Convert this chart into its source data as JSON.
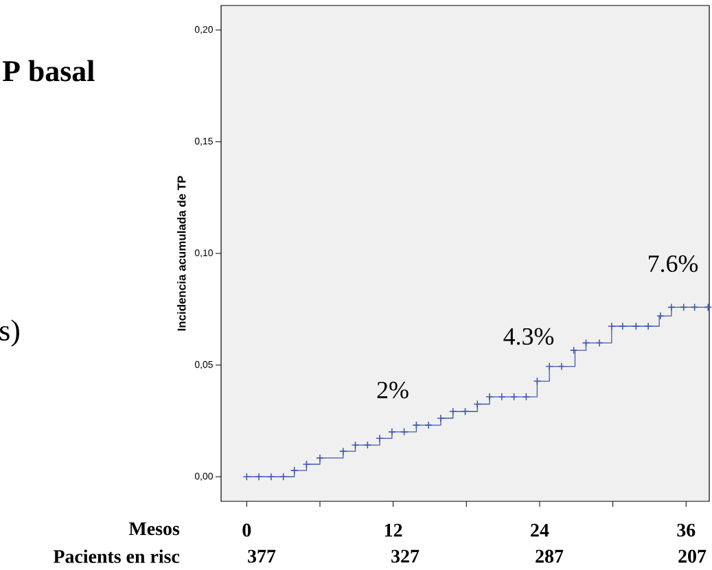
{
  "chart_data": {
    "type": "step",
    "xlabel": "Mesos",
    "ylabel": "Incidencia acumulada de TP",
    "xlim": [
      -2.1,
      37.9
    ],
    "ylim": [
      -0.011,
      0.211
    ],
    "xticks": [
      0,
      {
        "value": 6,
        "label": null
      },
      12,
      {
        "value": 18,
        "label": null
      },
      24,
      {
        "value": 30,
        "label": null
      },
      36
    ],
    "yticks": [
      {
        "value": 0,
        "label": "0,00"
      },
      {
        "value": 0.05,
        "label": "0,05"
      },
      {
        "value": 0.1,
        "label": "0,10"
      },
      {
        "value": 0.15,
        "label": "0,15"
      },
      {
        "value": 0.2,
        "label": "0,20"
      }
    ],
    "grid": false,
    "series": [
      {
        "color": "#4058b0",
        "x": [
          0,
          3.9,
          4.9,
          6.0,
          7.9,
          8.9,
          10.9,
          11.9,
          13.9,
          15.9,
          16.9,
          18.9,
          19.9,
          23.8,
          24.8,
          26.9,
          27.8,
          29.9,
          33.8,
          34.8,
          37.8
        ],
        "values": [
          0,
          0.0028,
          0.0056,
          0.0084,
          0.0114,
          0.0142,
          0.0172,
          0.0201,
          0.0231,
          0.0262,
          0.0292,
          0.0325,
          0.0358,
          0.0428,
          0.0494,
          0.0566,
          0.0599,
          0.0674,
          0.072,
          0.0759,
          0.0759
        ]
      },
      {
        "type": "scatter",
        "marker": "cross",
        "color": "#4058b0",
        "x": [
          0,
          1.0,
          2.0,
          3.0,
          3.9,
          4.9,
          6.0,
          7.9,
          8.9,
          9.9,
          10.9,
          11.9,
          12.9,
          13.9,
          14.9,
          15.9,
          16.9,
          17.9,
          18.9,
          19.9,
          20.9,
          21.9,
          22.9,
          23.8,
          24.8,
          25.8,
          26.8,
          27.8,
          28.9,
          29.9,
          30.8,
          31.9,
          32.9,
          33.9,
          34.8,
          35.8,
          36.7,
          37.8
        ],
        "values": [
          0,
          0,
          0,
          0,
          0.0028,
          0.0056,
          0.0084,
          0.0114,
          0.0142,
          0.0142,
          0.0172,
          0.0201,
          0.0201,
          0.0231,
          0.0231,
          0.0262,
          0.0292,
          0.0292,
          0.0325,
          0.0358,
          0.0358,
          0.0358,
          0.0358,
          0.0428,
          0.0494,
          0.0494,
          0.0566,
          0.0599,
          0.0599,
          0.0674,
          0.0674,
          0.0674,
          0.0674,
          0.072,
          0.0759,
          0.0759,
          0.0759,
          0.0759
        ]
      }
    ],
    "annotations": [
      "2%",
      "4.3%",
      "7.6%",
      "377",
      "327",
      "287",
      "207",
      "P basal",
      "s)",
      "Pacients en risc"
    ]
  }
}
